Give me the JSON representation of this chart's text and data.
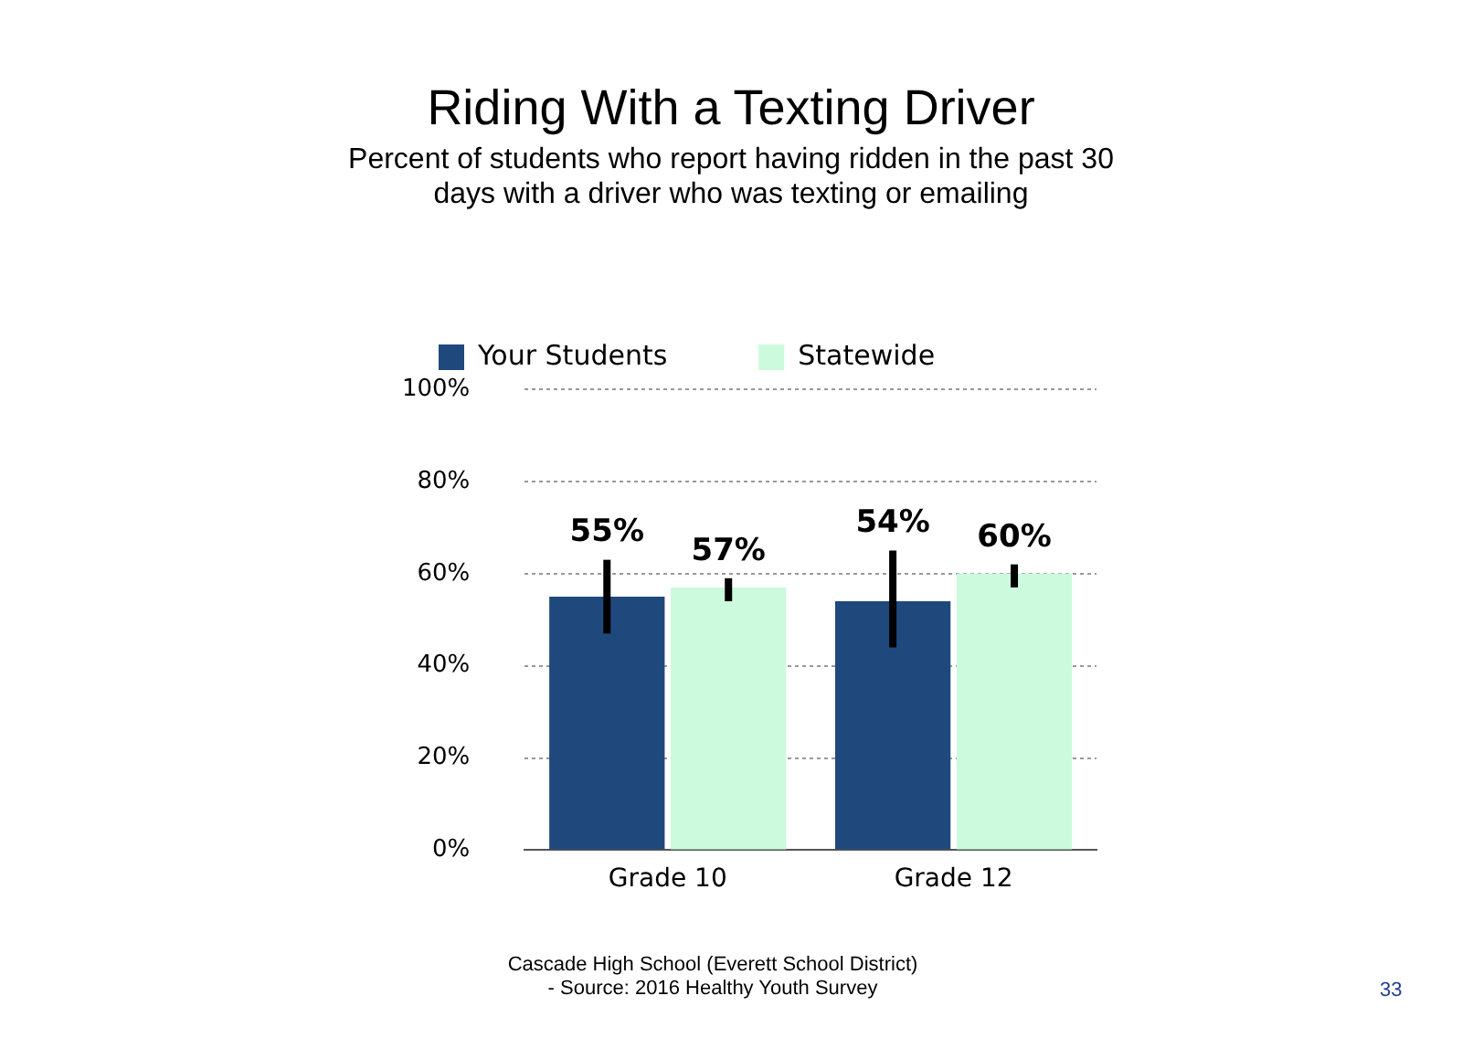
{
  "chart_data": {
    "type": "bar",
    "title": "Riding With a Texting Driver",
    "subtitle": "Percent of students who report having ridden in the past 30 days with a driver who was texting or emailing",
    "categories": [
      "Grade 10",
      "Grade 12"
    ],
    "series": [
      {
        "name": "Your Students",
        "color": "#1f497d",
        "values": [
          55,
          54
        ],
        "value_labels": [
          "55%",
          "54%"
        ],
        "errors": [
          [
            47,
            63
          ],
          [
            44,
            65
          ]
        ]
      },
      {
        "name": "Statewide",
        "color": "#ccfadc",
        "values": [
          57,
          60
        ],
        "value_labels": [
          "57%",
          "60%"
        ],
        "errors": [
          [
            54,
            59
          ],
          [
            57,
            62
          ]
        ]
      }
    ],
    "ylim": [
      0,
      100
    ],
    "yticks": [
      {
        "value": 0,
        "label": "0%"
      },
      {
        "value": 20,
        "label": "20%"
      },
      {
        "value": 40,
        "label": "40%"
      },
      {
        "value": 60,
        "label": "60%"
      },
      {
        "value": 80,
        "label": "80%"
      },
      {
        "value": 100,
        "label": "100%"
      }
    ],
    "grid": "y",
    "legend": "top",
    "annotations": [
      "Cascade High School (Everett School District)",
      "- Source: 2016 Healthy Youth Survey",
      "33"
    ]
  }
}
